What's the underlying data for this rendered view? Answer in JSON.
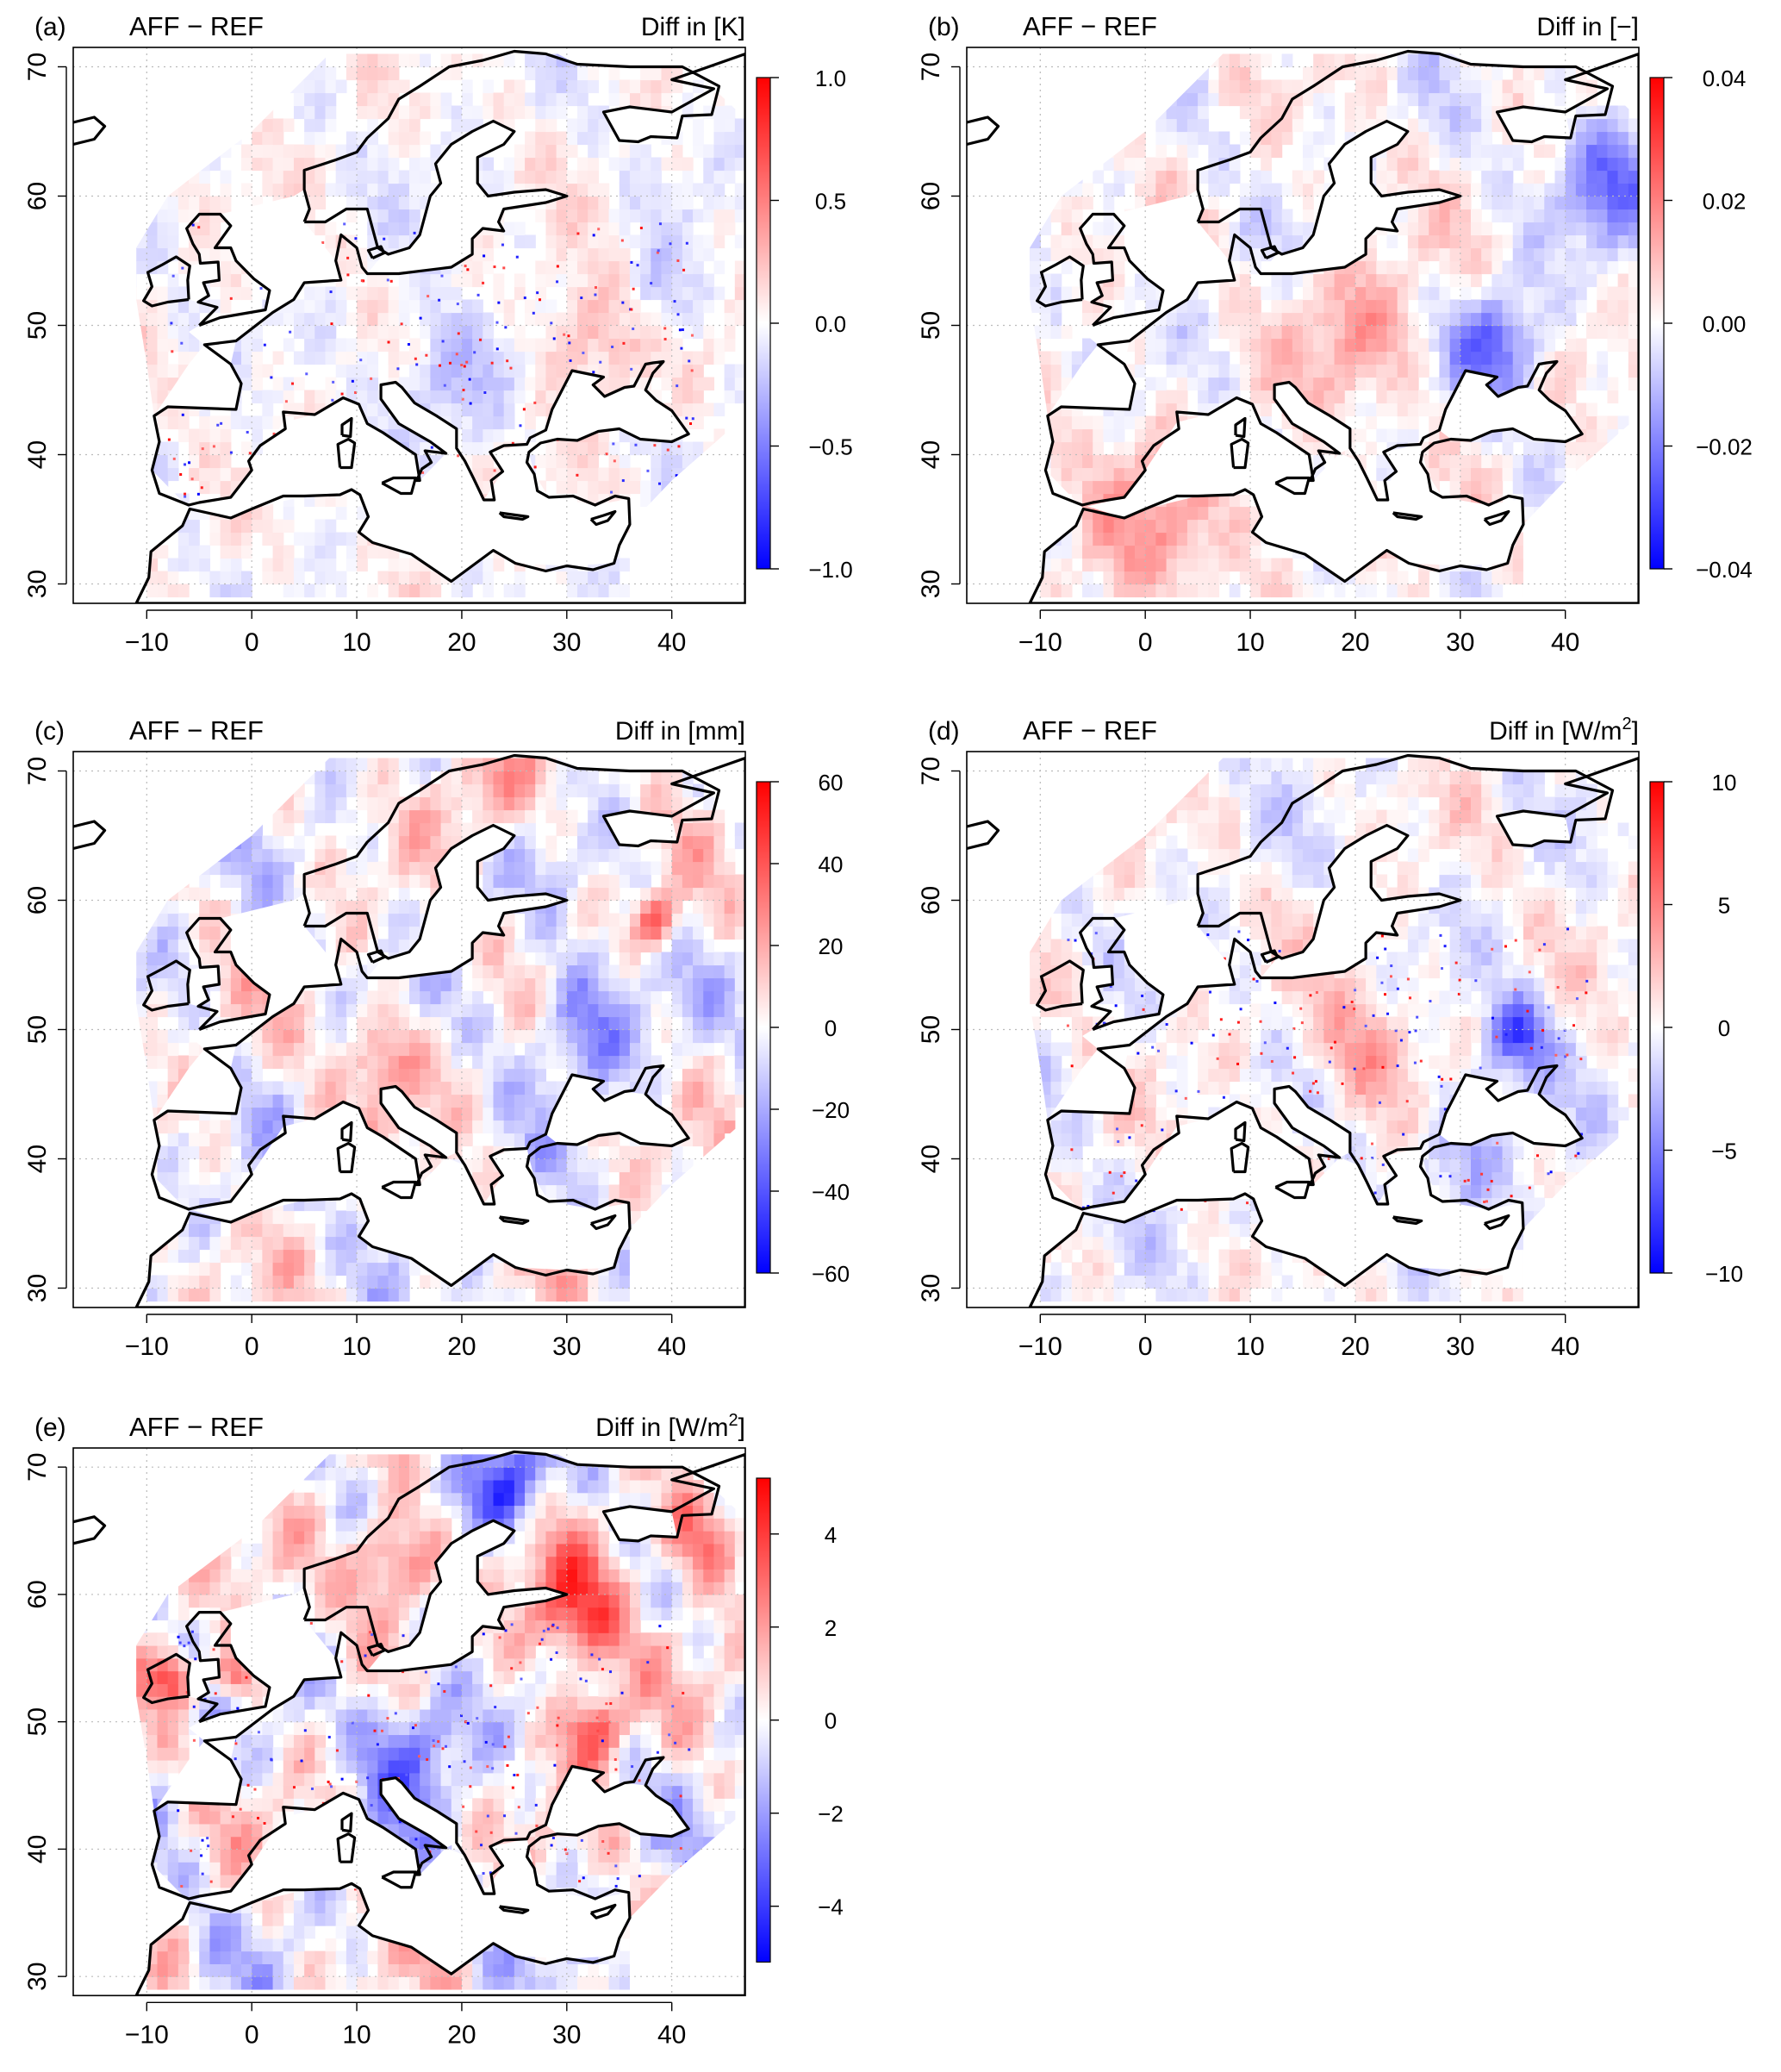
{
  "figure": {
    "panels": [
      {
        "id": "a",
        "letter": "(a)",
        "title": "AFF − REF",
        "unit_prefix": "Diff in [",
        "unit_main": "K",
        "unit_sup": "",
        "unit_suffix": "]",
        "colorbar": {
          "ticks": [
            "1.0",
            "0.5",
            "0.0",
            "−0.5",
            "−1.0"
          ],
          "values": [
            1,
            0.5,
            0,
            -0.5,
            -1
          ],
          "min": -1,
          "max": 1
        },
        "pattern": {
          "amp": 0.22,
          "seed": 11,
          "speckle": true,
          "hot": [
            {
              "lon": 32,
              "lat": 49,
              "v": 0.35,
              "r": 5
            },
            {
              "lon": 18,
              "lat": 46,
              "v": -0.3,
              "r": 5
            },
            {
              "lon": 38,
              "lat": 52,
              "v": -0.25,
              "r": 4
            }
          ]
        }
      },
      {
        "id": "b",
        "letter": "(b)",
        "title": "AFF − REF",
        "unit_prefix": "Diff in [",
        "unit_main": "−",
        "unit_sup": "",
        "unit_suffix": "]",
        "colorbar": {
          "ticks": [
            "0.04",
            "0.02",
            "0.00",
            "−0.02",
            "−0.04"
          ],
          "values": [
            0.04,
            0.02,
            0,
            -0.02,
            -0.04
          ],
          "min": -0.04,
          "max": 0.04
        },
        "pattern": {
          "amp": 0.3,
          "seed": 23,
          "speckle": false,
          "hot": [
            {
              "lon": 33,
              "lat": 48,
              "v": -0.6,
              "r": 4
            },
            {
              "lon": 44,
              "lat": 61,
              "v": -0.5,
              "r": 5
            },
            {
              "lon": 20,
              "lat": 49,
              "v": 0.35,
              "r": 6
            },
            {
              "lon": 0,
              "lat": 34,
              "v": 0.3,
              "r": 8
            }
          ]
        }
      },
      {
        "id": "c",
        "letter": "(c)",
        "title": "AFF − REF",
        "unit_prefix": "Diff in [",
        "unit_main": "mm",
        "unit_sup": "",
        "unit_suffix": "]",
        "colorbar": {
          "ticks": [
            "60",
            "40",
            "20",
            "0",
            "−20",
            "−40",
            "−60"
          ],
          "values": [
            60,
            40,
            20,
            0,
            -20,
            -40,
            -60
          ],
          "min": -60,
          "max": 60
        },
        "pattern": {
          "amp": 0.45,
          "seed": 37,
          "speckle": false,
          "hot": [
            {
              "lon": 12,
              "lat": 47,
              "v": 0.45,
              "r": 4
            },
            {
              "lon": 31,
              "lat": 50,
              "v": -0.5,
              "r": 5
            },
            {
              "lon": 38,
              "lat": 58,
              "v": 0.7,
              "r": 2
            },
            {
              "lon": 22,
              "lat": 68,
              "v": 0.4,
              "r": 4
            }
          ]
        }
      },
      {
        "id": "d",
        "letter": "(d)",
        "title": "AFF − REF",
        "unit_prefix": "Diff in [W/m",
        "unit_main": "",
        "unit_sup": "2",
        "unit_suffix": "]",
        "colorbar": {
          "ticks": [
            "10",
            "5",
            "0",
            "−5",
            "−10"
          ],
          "values": [
            10,
            5,
            0,
            -5,
            -10
          ],
          "min": -10,
          "max": 10
        },
        "pattern": {
          "amp": 0.3,
          "seed": 41,
          "speckle": true,
          "hot": [
            {
              "lon": 35,
              "lat": 49,
              "v": -0.7,
              "r": 3
            },
            {
              "lon": 20,
              "lat": 48,
              "v": 0.35,
              "r": 5
            },
            {
              "lon": 30,
              "lat": 41,
              "v": -0.3,
              "r": 5
            }
          ]
        }
      },
      {
        "id": "e",
        "letter": "(e)",
        "title": "AFF − REF",
        "unit_prefix": "Diff in [W/m",
        "unit_main": "",
        "unit_sup": "2",
        "unit_suffix": "]",
        "colorbar": {
          "ticks": [
            "4",
            "2",
            "0",
            "−2",
            "−4"
          ],
          "values": [
            4,
            2,
            0,
            -2,
            -4
          ],
          "min": -5.2,
          "max": 5.2
        },
        "pattern": {
          "amp": 0.55,
          "seed": 53,
          "speckle": true,
          "hot": [
            {
              "lon": 24,
              "lat": 68,
              "v": -0.8,
              "r": 4
            },
            {
              "lon": 13,
              "lat": 62,
              "v": 0.75,
              "r": 4
            },
            {
              "lon": 30,
              "lat": 58,
              "v": 0.75,
              "r": 5
            },
            {
              "lon": 32,
              "lat": 49,
              "v": 0.8,
              "r": 3
            },
            {
              "lon": 15,
              "lat": 48,
              "v": -0.6,
              "r": 5
            },
            {
              "lon": -8,
              "lat": 53,
              "v": 0.8,
              "r": 2
            },
            {
              "lon": -2,
              "lat": 53,
              "v": 0.7,
              "r": 2
            },
            {
              "lon": 42,
              "lat": 64,
              "v": 0.7,
              "r": 4
            }
          ]
        }
      }
    ],
    "axes": {
      "x_ticks": [
        "−10",
        "0",
        "10",
        "20",
        "30",
        "40"
      ],
      "x_values": [
        -10,
        0,
        10,
        20,
        30,
        40
      ],
      "y_ticks": [
        "30",
        "40",
        "50",
        "60",
        "70"
      ],
      "y_values": [
        30,
        40,
        50,
        60,
        70
      ],
      "lon_range": [
        -17,
        47
      ],
      "lat_range": [
        28.5,
        71.5
      ]
    },
    "colors": {
      "positive": "#ff0000",
      "negative": "#0000ff",
      "neutral": "#ffffff",
      "coast": "#000000",
      "grid": "#bbbbbb"
    }
  }
}
